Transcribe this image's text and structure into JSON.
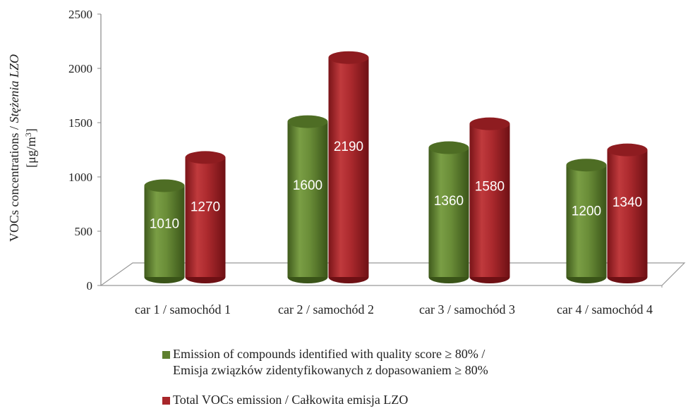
{
  "chart_data": {
    "type": "bar",
    "style": "3d-cylinder",
    "categories": [
      "car 1 / samochód 1",
      "car 2 / samochód 2",
      "car 3 / samochód 3",
      "car 4 / samochód 4"
    ],
    "series": [
      {
        "name_lines": [
          "Emission of compounds identified with quality score ≥ 80% /",
          "Emisja związków zidentyfikowanych z dopasowaniem ≥ 80%"
        ],
        "color": "#5e7f2e",
        "values": [
          1010,
          1600,
          1360,
          1200
        ]
      },
      {
        "name_lines": [
          "Total VOCs emission / Całkowita emisja LZO"
        ],
        "color": "#a8262a",
        "values": [
          1270,
          2190,
          1580,
          1340
        ]
      }
    ],
    "ylabel": "VOCs concentrations / ",
    "ylabel_italic": "Stężenia LZO",
    "ylabel_unit": "[μg/m",
    "ylabel_unit_sup": "3",
    "ylabel_unit_close": "]",
    "ylim": [
      0,
      2500
    ],
    "yticks": [
      0,
      500,
      1000,
      1500,
      2000,
      2500
    ],
    "legend_position": "bottom"
  }
}
